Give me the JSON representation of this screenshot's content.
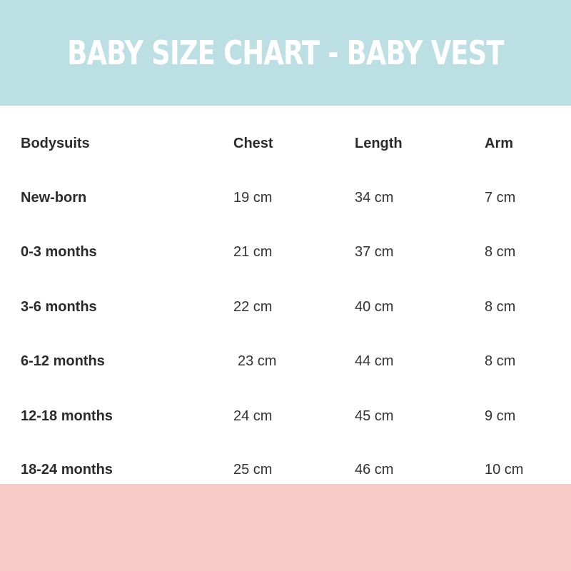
{
  "title": "BABY SIZE CHART - BABY VEST",
  "colors": {
    "header_band": "#bcdfe4",
    "footer_band": "#f7cbc6",
    "title_text": "#ffffff",
    "body_text": "#333333"
  },
  "table": {
    "headers": [
      "Bodysuits",
      "Chest",
      "Length",
      "Arm"
    ],
    "rows": [
      [
        "New-born",
        "19 cm",
        "34 cm",
        "7 cm"
      ],
      [
        "0-3 months",
        "21 cm",
        "37 cm",
        "8 cm"
      ],
      [
        "3-6 months",
        "22 cm",
        "40 cm",
        "8 cm"
      ],
      [
        "6-12 months",
        "23 cm",
        "44 cm",
        "8 cm"
      ],
      [
        "12-18 months",
        "24 cm",
        "45 cm",
        "9 cm"
      ],
      [
        "18-24 months",
        "25 cm",
        "46 cm",
        "10 cm"
      ]
    ]
  }
}
